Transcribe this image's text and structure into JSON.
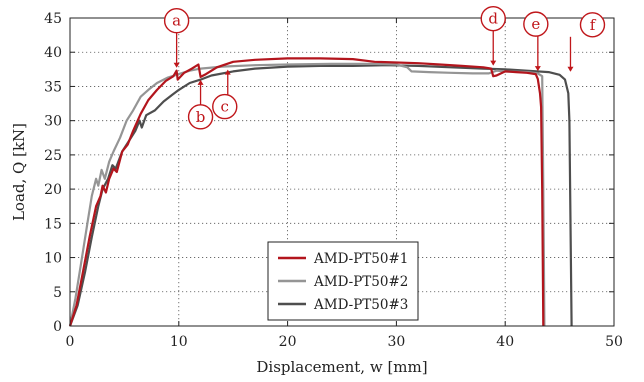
{
  "chart_data": {
    "type": "line",
    "xlabel": "Displacement, w [mm]",
    "ylabel": "Load, Q [kN]",
    "xlim": [
      0,
      50
    ],
    "ylim": [
      0,
      45
    ],
    "x_ticks": [
      "0",
      "10",
      "20",
      "30",
      "40",
      "50"
    ],
    "y_ticks": [
      "0",
      "5",
      "10",
      "15",
      "20",
      "25",
      "30",
      "35",
      "40",
      "45"
    ],
    "grid": "dotted",
    "legend_position": "bottom-center",
    "series": [
      {
        "name": "AMD-PT50#1",
        "color": "#b3151d",
        "points": [
          [
            0,
            0
          ],
          [
            0.6,
            3
          ],
          [
            1.2,
            8
          ],
          [
            1.8,
            13
          ],
          [
            2.4,
            17.5
          ],
          [
            2.8,
            19
          ],
          [
            3.0,
            20.5
          ],
          [
            3.3,
            19.5
          ],
          [
            3.6,
            21.5
          ],
          [
            4.0,
            23
          ],
          [
            4.3,
            22.5
          ],
          [
            4.8,
            25.5
          ],
          [
            5.3,
            26.5
          ],
          [
            5.8,
            28.5
          ],
          [
            6.5,
            31
          ],
          [
            7.2,
            33
          ],
          [
            8.0,
            34.5
          ],
          [
            8.8,
            35.8
          ],
          [
            9.5,
            36.5
          ],
          [
            9.8,
            37.3
          ],
          [
            9.9,
            36.0
          ],
          [
            10.5,
            37.0
          ],
          [
            11.2,
            37.6
          ],
          [
            11.8,
            38.2
          ],
          [
            12.0,
            36.4
          ],
          [
            12.5,
            36.8
          ],
          [
            13.5,
            37.8
          ],
          [
            15,
            38.6
          ],
          [
            17,
            38.9
          ],
          [
            20,
            39.1
          ],
          [
            23,
            39.1
          ],
          [
            26,
            39.0
          ],
          [
            28,
            38.6
          ],
          [
            30,
            38.5
          ],
          [
            32,
            38.4
          ],
          [
            34,
            38.2
          ],
          [
            36,
            38.0
          ],
          [
            38,
            37.8
          ],
          [
            38.7,
            37.6
          ],
          [
            38.9,
            36.5
          ],
          [
            39.2,
            36.6
          ],
          [
            40,
            37.2
          ],
          [
            41,
            37.1
          ],
          [
            42,
            37.0
          ],
          [
            42.8,
            36.8
          ],
          [
            43.0,
            36.1
          ],
          [
            43.2,
            34
          ],
          [
            43.3,
            32
          ],
          [
            43.4,
            20
          ],
          [
            43.5,
            0
          ]
        ]
      },
      {
        "name": "AMD-PT50#2",
        "color": "#959595",
        "points": [
          [
            0,
            0
          ],
          [
            0.5,
            4
          ],
          [
            1.0,
            9
          ],
          [
            1.6,
            15
          ],
          [
            2.0,
            19
          ],
          [
            2.4,
            21.5
          ],
          [
            2.6,
            20.5
          ],
          [
            2.9,
            22.8
          ],
          [
            3.2,
            21.5
          ],
          [
            3.6,
            24
          ],
          [
            4.0,
            25.5
          ],
          [
            4.6,
            27.5
          ],
          [
            5.2,
            30
          ],
          [
            5.8,
            31.5
          ],
          [
            6.5,
            33.5
          ],
          [
            7.2,
            34.5
          ],
          [
            8.0,
            35.5
          ],
          [
            9.0,
            36.3
          ],
          [
            10,
            36.8
          ],
          [
            11,
            37.3
          ],
          [
            12,
            37.6
          ],
          [
            14,
            37.9
          ],
          [
            17,
            38.1
          ],
          [
            20,
            38.2
          ],
          [
            24,
            38.3
          ],
          [
            28,
            38.3
          ],
          [
            30,
            38.2
          ],
          [
            31,
            37.8
          ],
          [
            31.4,
            37.2
          ],
          [
            33,
            37.1
          ],
          [
            35,
            37.0
          ],
          [
            37,
            36.9
          ],
          [
            38.5,
            36.9
          ],
          [
            39.2,
            37.3
          ],
          [
            40,
            37.2
          ],
          [
            42,
            37.1
          ],
          [
            43,
            36.9
          ],
          [
            43.4,
            36.5
          ],
          [
            43.5,
            20
          ],
          [
            43.6,
            0
          ]
        ]
      },
      {
        "name": "AMD-PT50#3",
        "color": "#4e4e4e",
        "points": [
          [
            0,
            0
          ],
          [
            0.7,
            3
          ],
          [
            1.4,
            8
          ],
          [
            2.0,
            13
          ],
          [
            2.6,
            17.5
          ],
          [
            3.0,
            20
          ],
          [
            3.5,
            21.5
          ],
          [
            3.9,
            23.5
          ],
          [
            4.2,
            23.0
          ],
          [
            4.8,
            25.5
          ],
          [
            5.4,
            27
          ],
          [
            6.0,
            28.5
          ],
          [
            6.4,
            30
          ],
          [
            6.6,
            29
          ],
          [
            7.0,
            30.8
          ],
          [
            7.8,
            31.5
          ],
          [
            8.6,
            32.8
          ],
          [
            9.4,
            33.8
          ],
          [
            10,
            34.5
          ],
          [
            11,
            35.5
          ],
          [
            12,
            36.0
          ],
          [
            13,
            36.6
          ],
          [
            15,
            37.2
          ],
          [
            17,
            37.6
          ],
          [
            20,
            37.9
          ],
          [
            23,
            38.0
          ],
          [
            26,
            38.0
          ],
          [
            29,
            38.1
          ],
          [
            32,
            38.0
          ],
          [
            35,
            37.8
          ],
          [
            38,
            37.6
          ],
          [
            40,
            37.5
          ],
          [
            42,
            37.3
          ],
          [
            44,
            37.1
          ],
          [
            45.0,
            36.7
          ],
          [
            45.5,
            36.0
          ],
          [
            45.8,
            34
          ],
          [
            45.9,
            30
          ],
          [
            46.0,
            15
          ],
          [
            46.1,
            0
          ]
        ]
      }
    ],
    "annotations": [
      {
        "label": "a",
        "x": 9.8,
        "y": 37.3,
        "side": "above"
      },
      {
        "label": "b",
        "x": 12.0,
        "y": 36.4,
        "side": "below"
      },
      {
        "label": "c",
        "x": 14.5,
        "y": 37.9,
        "side": "below"
      },
      {
        "label": "d",
        "x": 38.9,
        "y": 37.6,
        "side": "above"
      },
      {
        "label": "e",
        "x": 43.0,
        "y": 36.8,
        "side": "above"
      },
      {
        "label": "f",
        "x": 46.0,
        "y": 36.7,
        "side": "above"
      }
    ]
  }
}
